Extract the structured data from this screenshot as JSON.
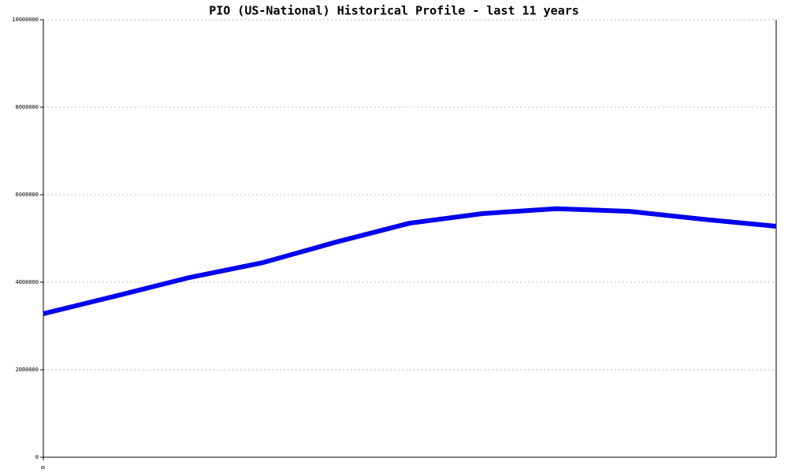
{
  "chart_data": {
    "type": "line",
    "title": "PIO (US-National) Historical Profile - last 11 years",
    "categories": [
      "0",
      null,
      null,
      null,
      null,
      null,
      null,
      null,
      null,
      null,
      null
    ],
    "series": [
      {
        "name": "PIO",
        "color": "#0000ee",
        "values": [
          3280000,
          3690000,
          4110000,
          4450000,
          4920000,
          5350000,
          5570000,
          5680000,
          5620000,
          5440000,
          5280000
        ]
      }
    ],
    "ylim": [
      0,
      10000000
    ],
    "yticks": [
      0,
      2000000,
      4000000,
      6000000,
      8000000,
      10000000
    ],
    "grid": true
  }
}
